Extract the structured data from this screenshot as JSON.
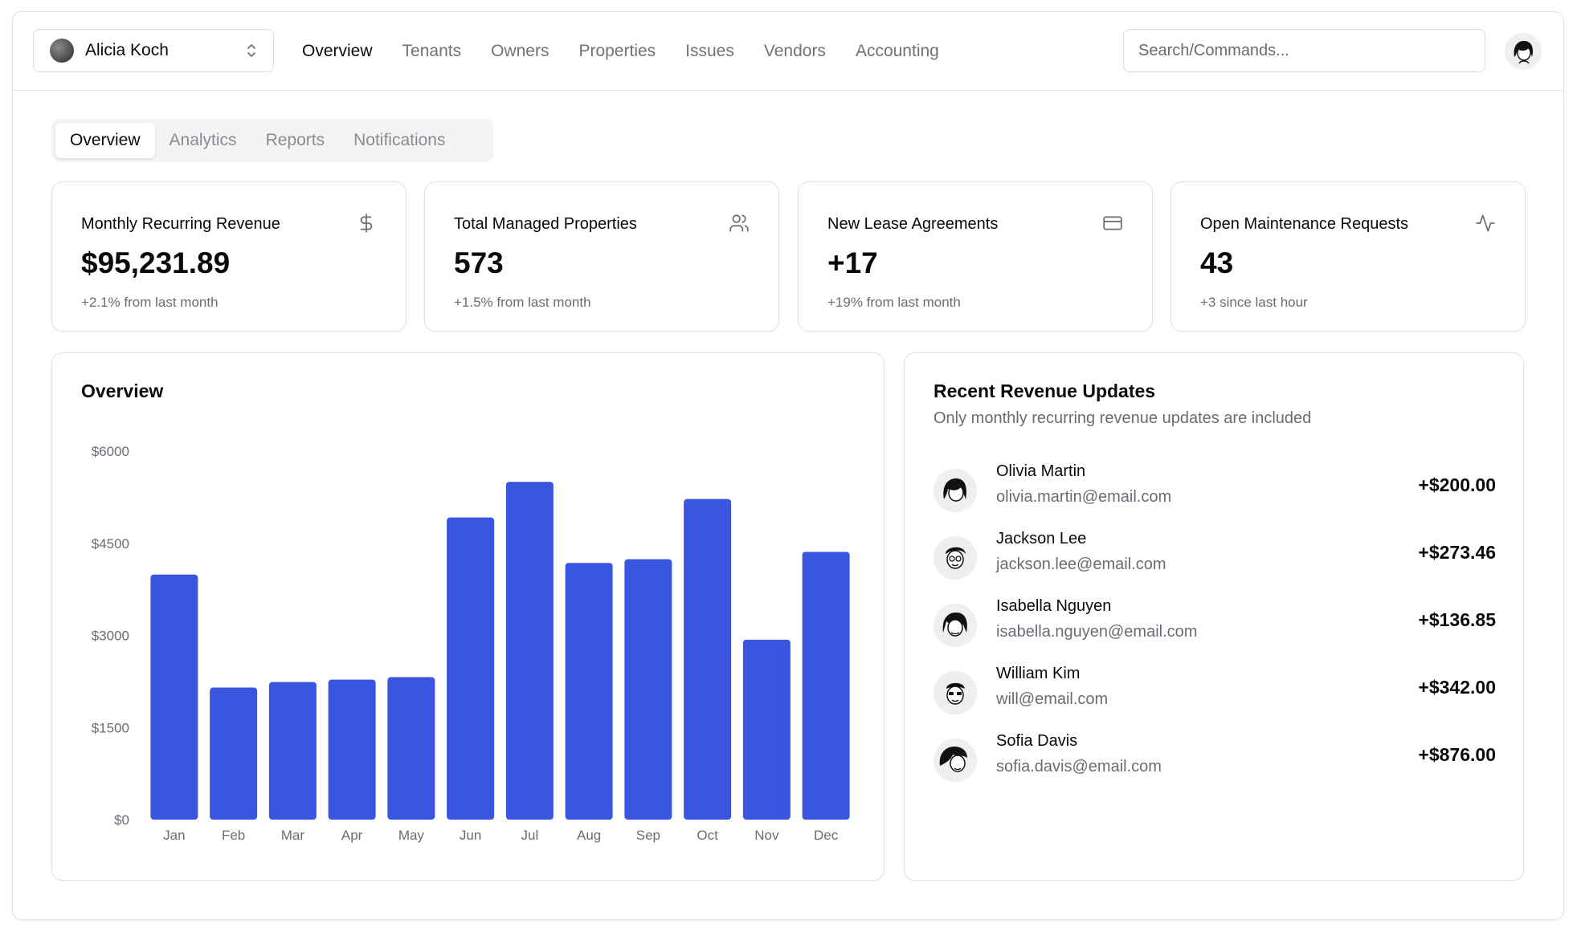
{
  "header": {
    "team_name": "Alicia Koch",
    "nav": [
      {
        "label": "Overview",
        "active": true
      },
      {
        "label": "Tenants",
        "active": false
      },
      {
        "label": "Owners",
        "active": false
      },
      {
        "label": "Properties",
        "active": false
      },
      {
        "label": "Issues",
        "active": false
      },
      {
        "label": "Vendors",
        "active": false
      },
      {
        "label": "Accounting",
        "active": false
      }
    ],
    "search_placeholder": "Search/Commands..."
  },
  "tabs": [
    {
      "label": "Overview",
      "active": true
    },
    {
      "label": "Analytics",
      "active": false
    },
    {
      "label": "Reports",
      "active": false
    },
    {
      "label": "Notifications",
      "active": false
    }
  ],
  "kpis": [
    {
      "title": "Monthly Recurring Revenue",
      "value": "$95,231.89",
      "sub": "+2.1% from last month",
      "icon": "dollar-icon"
    },
    {
      "title": "Total Managed Properties",
      "value": "573",
      "sub": "+1.5% from last month",
      "icon": "users-icon"
    },
    {
      "title": "New Lease Agreements",
      "value": "+17",
      "sub": "+19% from last month",
      "icon": "credit-card-icon"
    },
    {
      "title": "Open Maintenance Requests",
      "value": "43",
      "sub": "+3 since last hour",
      "icon": "activity-icon"
    }
  ],
  "overview": {
    "title": "Overview"
  },
  "chart_data": {
    "type": "bar",
    "title": "Overview",
    "categories": [
      "Jan",
      "Feb",
      "Mar",
      "Apr",
      "May",
      "Jun",
      "Jul",
      "Aug",
      "Sep",
      "Oct",
      "Nov",
      "Dec"
    ],
    "values": [
      3990,
      2150,
      2240,
      2280,
      2320,
      4920,
      5500,
      4180,
      4240,
      5220,
      2930,
      4360
    ],
    "y_ticks": [
      "$6000",
      "$4500",
      "$3000",
      "$1500",
      "$0"
    ],
    "ylim": [
      0,
      6000
    ],
    "bar_color": "#3a55e0",
    "grid": false,
    "xlabel": "",
    "ylabel": ""
  },
  "recent": {
    "title": "Recent Revenue Updates",
    "description": "Only monthly recurring revenue updates are included",
    "items": [
      {
        "name": "Olivia Martin",
        "email": "olivia.martin@email.com",
        "amount": "+$200.00"
      },
      {
        "name": "Jackson Lee",
        "email": "jackson.lee@email.com",
        "amount": "+$273.46"
      },
      {
        "name": "Isabella Nguyen",
        "email": "isabella.nguyen@email.com",
        "amount": "+$136.85"
      },
      {
        "name": "William Kim",
        "email": "will@email.com",
        "amount": "+$342.00"
      },
      {
        "name": "Sofia Davis",
        "email": "sofia.davis@email.com",
        "amount": "+$876.00"
      }
    ]
  }
}
